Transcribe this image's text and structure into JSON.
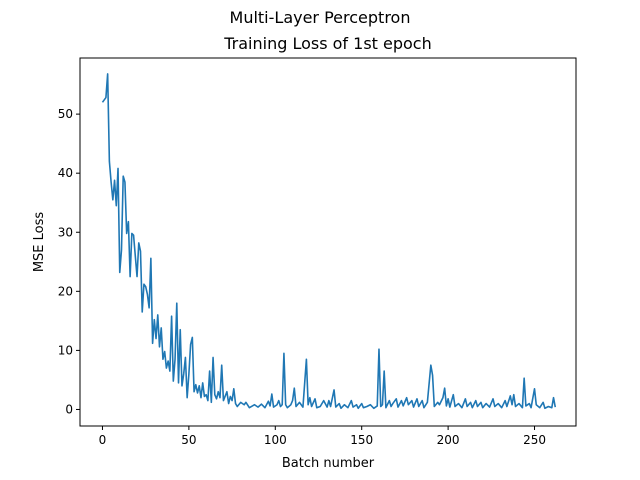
{
  "figure": {
    "suptitle": "Multi-Layer Perceptron"
  },
  "chart_data": {
    "type": "line",
    "title": "Training Loss of 1st epoch",
    "xlabel": "Batch number",
    "ylabel": "MSE Loss",
    "xlim": [
      -13,
      274
    ],
    "ylim": [
      -2.8,
      59.5
    ],
    "xticks": [
      0,
      50,
      100,
      150,
      200,
      250
    ],
    "yticks": [
      0,
      10,
      20,
      30,
      40,
      50
    ],
    "grid": false,
    "legend": "none",
    "color": "#1f77b4",
    "series": [
      {
        "points": [
          [
            0,
            52.0
          ],
          [
            2,
            52.8
          ],
          [
            3,
            56.8
          ],
          [
            4,
            42.0
          ],
          [
            5,
            38.5
          ],
          [
            6,
            35.5
          ],
          [
            7,
            38.8
          ],
          [
            8,
            34.5
          ],
          [
            9,
            40.8
          ],
          [
            10,
            23.2
          ],
          [
            11,
            27.0
          ],
          [
            12,
            39.5
          ],
          [
            13,
            38.5
          ],
          [
            14,
            29.8
          ],
          [
            15,
            31.8
          ],
          [
            16,
            22.5
          ],
          [
            17,
            29.8
          ],
          [
            18,
            29.5
          ],
          [
            19,
            26.0
          ],
          [
            20,
            22.5
          ],
          [
            21,
            28.2
          ],
          [
            22,
            26.8
          ],
          [
            23,
            16.5
          ],
          [
            24,
            21.2
          ],
          [
            25,
            20.8
          ],
          [
            26,
            19.5
          ],
          [
            27,
            17.2
          ],
          [
            28,
            25.6
          ],
          [
            29,
            11.2
          ],
          [
            30,
            15.2
          ],
          [
            31,
            12.0
          ],
          [
            32,
            16.0
          ],
          [
            33,
            10.6
          ],
          [
            34,
            13.8
          ],
          [
            35,
            8.5
          ],
          [
            36,
            9.8
          ],
          [
            37,
            7.0
          ],
          [
            38,
            8.2
          ],
          [
            39,
            6.5
          ],
          [
            40,
            15.8
          ],
          [
            41,
            4.8
          ],
          [
            42,
            8.5
          ],
          [
            43,
            18.0
          ],
          [
            44,
            4.5
          ],
          [
            45,
            13.5
          ],
          [
            46,
            4.0
          ],
          [
            47,
            6.0
          ],
          [
            48,
            8.8
          ],
          [
            49,
            2.0
          ],
          [
            50,
            6.0
          ],
          [
            51,
            11.0
          ],
          [
            52,
            12.2
          ],
          [
            53,
            3.0
          ],
          [
            54,
            4.2
          ],
          [
            55,
            2.8
          ],
          [
            56,
            4.0
          ],
          [
            57,
            2.0
          ],
          [
            58,
            4.5
          ],
          [
            59,
            2.2
          ],
          [
            60,
            2.5
          ],
          [
            61,
            1.5
          ],
          [
            62,
            6.5
          ],
          [
            63,
            1.2
          ],
          [
            64,
            8.8
          ],
          [
            65,
            2.5
          ],
          [
            66,
            1.8
          ],
          [
            67,
            3.0
          ],
          [
            68,
            2.0
          ],
          [
            69,
            7.5
          ],
          [
            70,
            1.5
          ],
          [
            72,
            3.0
          ],
          [
            73,
            1.0
          ],
          [
            74,
            2.2
          ],
          [
            75,
            1.5
          ],
          [
            76,
            3.5
          ],
          [
            77,
            1.0
          ],
          [
            78,
            0.5
          ],
          [
            80,
            1.2
          ],
          [
            82,
            0.8
          ],
          [
            83,
            1.2
          ],
          [
            85,
            0.3
          ],
          [
            88,
            0.8
          ],
          [
            90,
            0.4
          ],
          [
            92,
            0.9
          ],
          [
            94,
            0.3
          ],
          [
            96,
            1.4
          ],
          [
            97,
            0.6
          ],
          [
            98,
            2.6
          ],
          [
            99,
            0.4
          ],
          [
            101,
            0.8
          ],
          [
            102,
            1.5
          ],
          [
            103,
            0.5
          ],
          [
            104,
            0.8
          ],
          [
            105,
            9.5
          ],
          [
            106,
            0.8
          ],
          [
            107,
            0.3
          ],
          [
            109,
            0.8
          ],
          [
            110,
            1.5
          ],
          [
            111,
            3.6
          ],
          [
            112,
            0.5
          ],
          [
            114,
            1.2
          ],
          [
            116,
            0.4
          ],
          [
            118,
            8.5
          ],
          [
            119,
            0.8
          ],
          [
            120,
            2.0
          ],
          [
            121,
            0.5
          ],
          [
            123,
            1.8
          ],
          [
            124,
            0.3
          ],
          [
            126,
            0.5
          ],
          [
            128,
            1.5
          ],
          [
            130,
            0.4
          ],
          [
            131,
            1.5
          ],
          [
            132,
            0.5
          ],
          [
            134,
            3.3
          ],
          [
            135,
            0.4
          ],
          [
            137,
            1.0
          ],
          [
            138,
            0.2
          ],
          [
            140,
            0.8
          ],
          [
            142,
            0.3
          ],
          [
            144,
            1.5
          ],
          [
            145,
            0.4
          ],
          [
            147,
            0.8
          ],
          [
            148,
            0.2
          ],
          [
            150,
            1.0
          ],
          [
            151,
            0.3
          ],
          [
            153,
            0.5
          ],
          [
            155,
            0.8
          ],
          [
            157,
            0.2
          ],
          [
            159,
            0.6
          ],
          [
            160,
            10.2
          ],
          [
            161,
            0.5
          ],
          [
            162,
            0.8
          ],
          [
            163,
            6.5
          ],
          [
            164,
            0.3
          ],
          [
            166,
            1.5
          ],
          [
            167,
            0.5
          ],
          [
            168,
            1.0
          ],
          [
            170,
            1.8
          ],
          [
            171,
            0.4
          ],
          [
            173,
            1.5
          ],
          [
            174,
            0.6
          ],
          [
            176,
            2.0
          ],
          [
            177,
            0.8
          ],
          [
            179,
            1.5
          ],
          [
            180,
            0.4
          ],
          [
            182,
            1.8
          ],
          [
            183,
            0.5
          ],
          [
            185,
            1.5
          ],
          [
            186,
            0.3
          ],
          [
            188,
            1.2
          ],
          [
            190,
            7.5
          ],
          [
            191,
            5.8
          ],
          [
            192,
            0.5
          ],
          [
            194,
            1.2
          ],
          [
            195,
            0.8
          ],
          [
            197,
            2.0
          ],
          [
            198,
            3.6
          ],
          [
            199,
            0.6
          ],
          [
            200,
            1.8
          ],
          [
            201,
            0.4
          ],
          [
            203,
            2.5
          ],
          [
            204,
            0.5
          ],
          [
            206,
            1.0
          ],
          [
            208,
            0.3
          ],
          [
            210,
            1.8
          ],
          [
            211,
            0.5
          ],
          [
            213,
            1.2
          ],
          [
            214,
            0.3
          ],
          [
            216,
            1.5
          ],
          [
            217,
            0.5
          ],
          [
            219,
            1.2
          ],
          [
            220,
            0.3
          ],
          [
            222,
            1.0
          ],
          [
            224,
            0.4
          ],
          [
            226,
            1.8
          ],
          [
            227,
            0.5
          ],
          [
            229,
            1.0
          ],
          [
            231,
            0.3
          ],
          [
            233,
            1.5
          ],
          [
            234,
            0.5
          ],
          [
            236,
            2.3
          ],
          [
            237,
            0.8
          ],
          [
            238,
            2.5
          ],
          [
            239,
            0.5
          ],
          [
            241,
            1.0
          ],
          [
            243,
            0.3
          ],
          [
            244,
            5.3
          ],
          [
            245,
            0.6
          ],
          [
            247,
            1.0
          ],
          [
            248,
            0.3
          ],
          [
            250,
            3.5
          ],
          [
            251,
            0.8
          ],
          [
            253,
            0.3
          ],
          [
            255,
            1.2
          ],
          [
            256,
            0.2
          ],
          [
            258,
            0.5
          ],
          [
            260,
            0.3
          ],
          [
            261,
            2.0
          ],
          [
            262,
            0.4
          ]
        ]
      }
    ]
  }
}
